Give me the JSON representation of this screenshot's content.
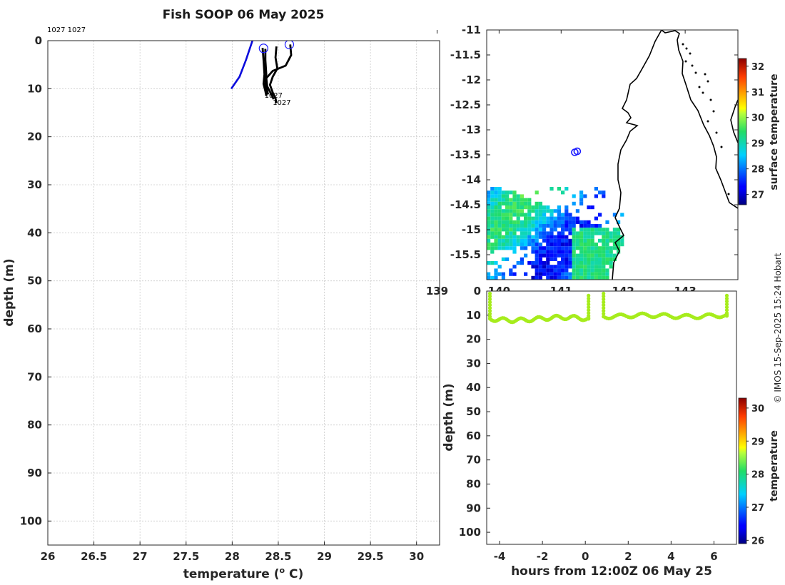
{
  "chart_data": [
    {
      "type": "line",
      "title": "Fish SOOP 06 May 2025",
      "xlabel": "temperature (",
      "xlabel_sup": "o",
      "xlabel_tail": " C)",
      "ylabel": "depth (m)",
      "xlim": [
        26,
        30.25
      ],
      "ylim": [
        0,
        105
      ],
      "xticks": [
        "26",
        "26.5",
        "27",
        "27.5",
        "28",
        "28.5",
        "29",
        "29.5",
        "30"
      ],
      "yticks": [
        "0",
        "10",
        "20",
        "30",
        "40",
        "50",
        "60",
        "70",
        "80",
        "90",
        "100"
      ],
      "top_label": "1027 1027",
      "profile_labels": [
        {
          "text": "1027",
          "temp": 28.35,
          "depth": 11.3
        },
        {
          "text": "1027",
          "temp": 28.44,
          "depth": 12.8
        }
      ],
      "reference_line": {
        "color": "#0a0adc",
        "points": [
          [
            27.99,
            10
          ],
          [
            28.08,
            7.5
          ],
          [
            28.15,
            4
          ],
          [
            28.22,
            0
          ]
        ]
      },
      "series": [
        {
          "name": "profile-1",
          "color": "#000000",
          "points": [
            [
              28.33,
              1.5
            ],
            [
              28.34,
              4
            ],
            [
              28.35,
              7
            ],
            [
              28.34,
              9
            ],
            [
              28.36,
              10.5
            ],
            [
              28.37,
              11.5
            ]
          ]
        },
        {
          "name": "profile-2",
          "color": "#000000",
          "points": [
            [
              28.36,
              1.7
            ],
            [
              28.36,
              4
            ],
            [
              28.37,
              7
            ],
            [
              28.36,
              9
            ],
            [
              28.38,
              10.5
            ],
            [
              28.39,
              11.2
            ]
          ]
        },
        {
          "name": "profile-3",
          "color": "#000000",
          "points": [
            [
              28.63,
              0.8
            ],
            [
              28.64,
              3
            ],
            [
              28.58,
              5.2
            ],
            [
              28.44,
              6.3
            ],
            [
              28.37,
              7.8
            ],
            [
              28.38,
              9.5
            ],
            [
              28.42,
              11
            ],
            [
              28.45,
              12.2
            ]
          ]
        },
        {
          "name": "profile-4",
          "color": "#000000",
          "points": [
            [
              28.48,
              1.2
            ],
            [
              28.47,
              3.5
            ],
            [
              28.49,
              5.8
            ],
            [
              28.44,
              7.5
            ],
            [
              28.41,
              9.2
            ],
            [
              28.44,
              10.8
            ],
            [
              28.47,
              12
            ],
            [
              28.48,
              13
            ]
          ]
        }
      ],
      "start_markers": [
        {
          "temp": 28.34,
          "depth": 1.6,
          "color": "#1a1aff"
        },
        {
          "temp": 28.62,
          "depth": 0.8,
          "color": "#1a1aff"
        }
      ]
    },
    {
      "type": "heatmap",
      "xlim": [
        139.8,
        143.85
      ],
      "ylim": [
        -16,
        -11
      ],
      "xticks": [
        "139",
        "140",
        "141",
        "142",
        "143"
      ],
      "yticks": [
        "-11",
        "-11.5",
        "-12",
        "-12.5",
        "-13",
        "-13.5",
        "-14",
        "-14.5",
        "-15",
        "-15.5"
      ],
      "track_points": [
        [
          141.22,
          -13.45
        ],
        [
          141.26,
          -13.43
        ]
      ],
      "track_color": "#1a1aff",
      "colorbar": {
        "label": "surface temperature",
        "range": [
          26.6,
          32.3
        ],
        "ticks": [
          "27",
          "28",
          "29",
          "30",
          "31",
          "32"
        ]
      }
    },
    {
      "type": "scatter",
      "xlabel": "hours from 12:00Z 06 May 25",
      "ylabel": "depth (m)",
      "xlim": [
        -4.6,
        7.05
      ],
      "ylim": [
        0,
        105
      ],
      "xticks": [
        "-4",
        "-2",
        "0",
        "2",
        "4",
        "6"
      ],
      "yticks": [
        "0",
        "10",
        "20",
        "30",
        "40",
        "50",
        "60",
        "70",
        "80",
        "90",
        "100"
      ],
      "point_color": "#a6ec1c",
      "segments": [
        {
          "x_start": -4.45,
          "x_end": 0.15,
          "depth_mean": 11.5
        },
        {
          "x_start": 0.85,
          "x_end": 6.6,
          "depth_mean": 10.3
        }
      ],
      "colorbar": {
        "label": "temperature",
        "range": [
          25.9,
          30.3
        ],
        "ticks": [
          "26",
          "27",
          "28",
          "29",
          "30"
        ]
      }
    }
  ],
  "credit": "© IMOS 15-Sep-2025 15:24 Hobart",
  "colors": {
    "profile": "#000000",
    "reference": "#0a0adc",
    "grid": "#d0d0d0",
    "coast": "#000000"
  }
}
